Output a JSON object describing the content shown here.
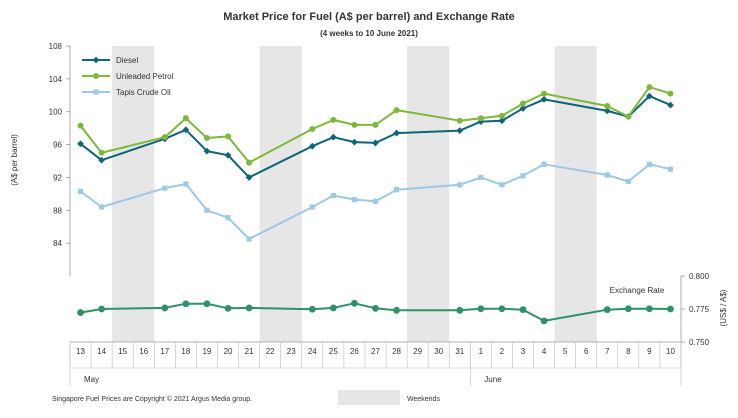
{
  "chart_data": {
    "type": "line",
    "title": "Market Price for Fuel (A$ per barrel) and Exchange  Rate",
    "subtitle": "(4 weeks to 10 June 2021)",
    "ylabel": "(A$ per barrel)",
    "y2label": "(US$ / A$)",
    "ylim": [
      80,
      108
    ],
    "y_ticks": [
      84,
      88,
      92,
      96,
      100,
      104,
      108
    ],
    "y2lim": [
      0.75,
      0.8
    ],
    "y2_ticks": [
      0.75,
      0.775,
      0.8
    ],
    "y2_tick_labels": [
      "0.750",
      "0.775",
      "0.800"
    ],
    "categories": [
      "13",
      "14",
      "15",
      "16",
      "17",
      "18",
      "19",
      "20",
      "21",
      "22",
      "23",
      "24",
      "25",
      "26",
      "27",
      "28",
      "29",
      "30",
      "31",
      "1",
      "2",
      "3",
      "4",
      "5",
      "6",
      "7",
      "8",
      "9",
      "10"
    ],
    "month_labels": [
      {
        "label": "May",
        "start_index": 0
      },
      {
        "label": "June",
        "start_index": 19
      }
    ],
    "weekends": [
      [
        2,
        3
      ],
      [
        9,
        10
      ],
      [
        16,
        17
      ],
      [
        23,
        24
      ]
    ],
    "series": [
      {
        "name": "Diesel",
        "color": "#0e6577",
        "marker": "diamond",
        "values": [
          96.1,
          94.1,
          null,
          null,
          96.7,
          97.8,
          95.2,
          94.7,
          92.0,
          null,
          null,
          95.8,
          96.9,
          96.3,
          96.2,
          97.4,
          null,
          null,
          97.7,
          98.8,
          98.9,
          100.4,
          101.5,
          null,
          null,
          100.1,
          99.4,
          101.9,
          100.8
        ]
      },
      {
        "name": "Unleaded Petrol",
        "color": "#7db83a",
        "marker": "circle",
        "values": [
          98.3,
          95.0,
          null,
          null,
          96.9,
          99.2,
          96.8,
          97.0,
          93.8,
          null,
          null,
          97.9,
          99.0,
          98.4,
          98.4,
          100.2,
          null,
          null,
          98.9,
          99.2,
          99.5,
          101.0,
          102.2,
          null,
          null,
          100.7,
          99.4,
          103.0,
          102.2
        ]
      },
      {
        "name": "Tapis Crude Oil",
        "color": "#9cc9e6",
        "marker": "square",
        "values": [
          90.3,
          88.4,
          null,
          null,
          90.7,
          91.2,
          88.0,
          87.1,
          84.5,
          null,
          null,
          88.4,
          89.8,
          89.3,
          89.1,
          90.5,
          null,
          null,
          91.1,
          92.0,
          91.1,
          92.2,
          93.6,
          null,
          null,
          92.3,
          91.5,
          93.6,
          93.0
        ]
      },
      {
        "name": "Exchange  Rate",
        "color": "#2e9167",
        "marker": "circle",
        "axis": "y2",
        "values": [
          0.7723,
          0.775,
          null,
          null,
          0.7758,
          0.779,
          0.779,
          0.7755,
          0.7758,
          null,
          null,
          0.7748,
          0.7758,
          0.7793,
          0.7755,
          0.774,
          null,
          null,
          0.774,
          0.7752,
          0.7752,
          0.7745,
          0.766,
          null,
          null,
          0.7745,
          0.7752,
          0.7752,
          0.775
        ]
      }
    ],
    "legend": {
      "placement": "top-left",
      "items": [
        "Diesel",
        "Unleaded Petrol",
        "Tapis Crude Oil"
      ]
    },
    "exchange_label": "Exchange  Rate",
    "weekends_legend_label": "Weekends",
    "footer": "Singapore  Fuel Prices are Copyright © 2021 Argus Media group.",
    "colors": {
      "weekend_band": "#e6e6e6",
      "axis": "#999999",
      "text": "#333333"
    }
  }
}
